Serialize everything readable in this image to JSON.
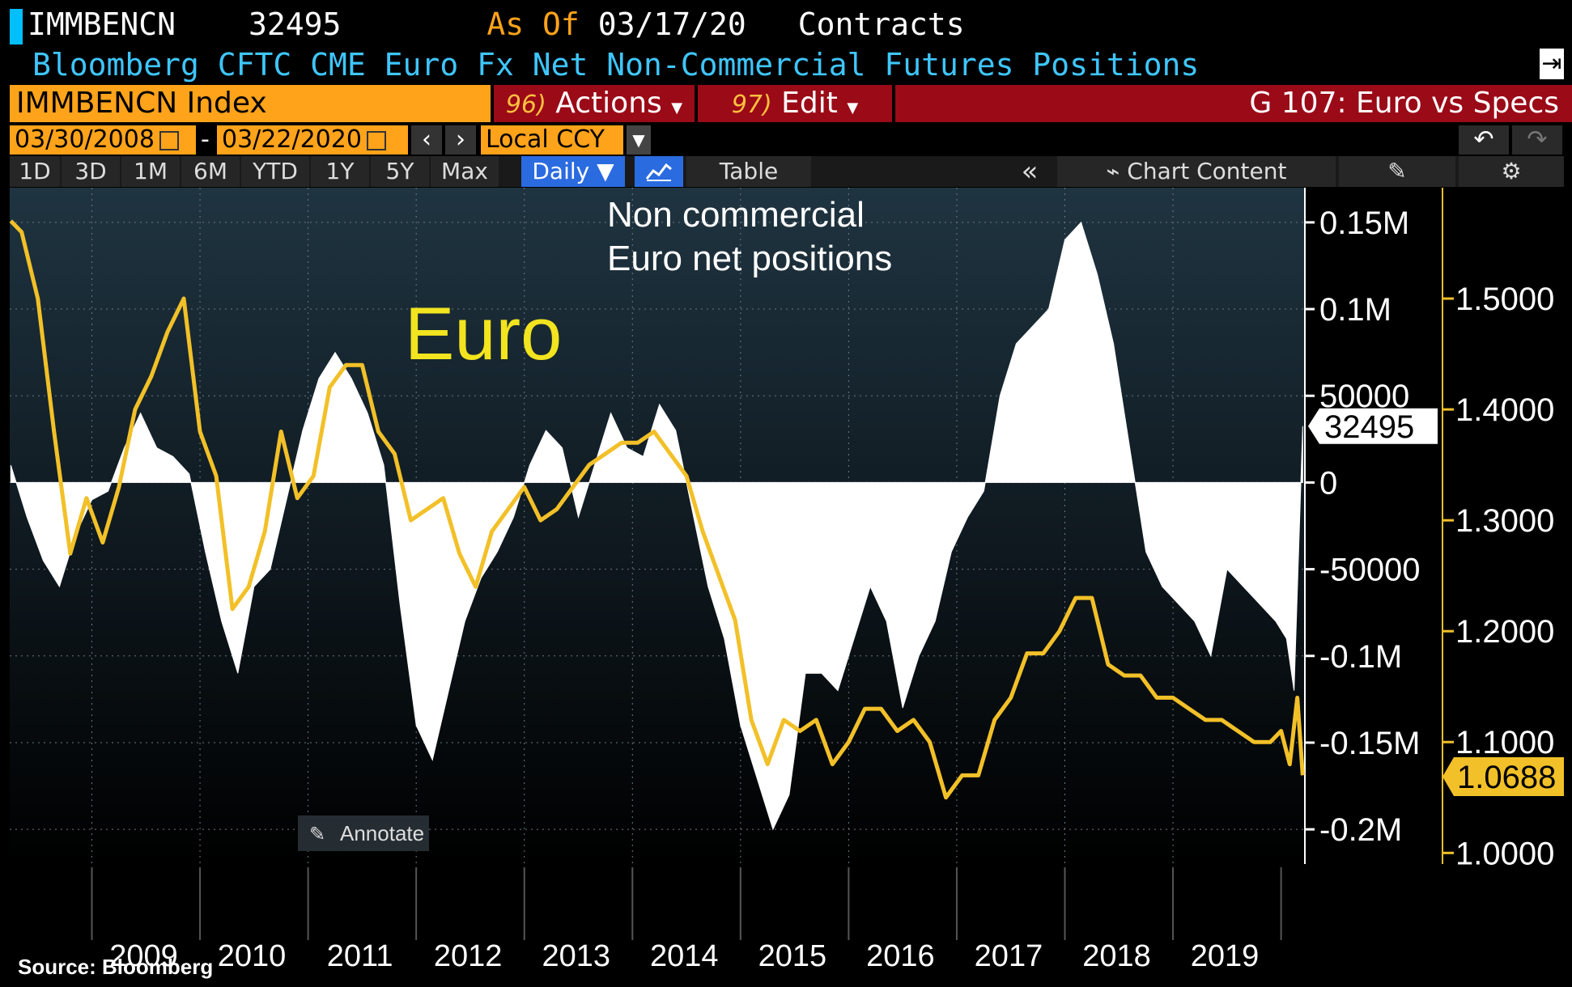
{
  "header": {
    "ticker": "IMMBENCN",
    "value": "32495",
    "as_of_label": "As Of",
    "as_of_date": "03/17/20",
    "units": "Contracts",
    "description": "Bloomberg CFTC CME Euro Fx Net Non-Commercial Futures Positions",
    "export_icon": "export-icon"
  },
  "toolbar": {
    "security": "IMMBENCN Index",
    "actions_num": "96)",
    "actions_label": "Actions",
    "edit_num": "97)",
    "edit_label": "Edit",
    "chart_title": "G 107: Euro vs Specs",
    "start_date": "03/30/2008",
    "date_sep": "-",
    "end_date": "03/22/2020",
    "currency": "Local CCY",
    "prev_icon": "chevron-left-icon",
    "next_icon": "chevron-right-icon"
  },
  "tabs": {
    "d1": "1D",
    "d3": "3D",
    "m1": "1M",
    "m6": "6M",
    "ytd": "YTD",
    "y1": "1Y",
    "y5": "5Y",
    "max": "Max",
    "daily": "Daily ▼",
    "table": "Table",
    "collapse": "«",
    "chart_content": "Chart Content"
  },
  "colors": {
    "background_top": "#1c2c36",
    "background_bottom": "#000000",
    "positions": "#ffffff",
    "euro": "#f2c028",
    "accent": "#ffa31a",
    "header_red": "#9b0a17",
    "title_blue": "#3ec6ff"
  },
  "chart_data": {
    "type": "area",
    "annotations": {
      "euro_label": "Euro",
      "positions_label_1": "Non commercial",
      "positions_label_2": "Euro net positions",
      "annotate_button": "Annotate"
    },
    "x_ticks": [
      "2009",
      "2010",
      "2011",
      "2012",
      "2013",
      "2014",
      "2015",
      "2016",
      "2017",
      "2018",
      "2019"
    ],
    "x_range": [
      "2008-03-30",
      "2020-03-22"
    ],
    "y_left_label_range": [
      -220000,
      170000
    ],
    "y_left_ticks": [
      "0.15M",
      "0.1M",
      "50000",
      "0",
      "-50000",
      "-0.1M",
      "-0.15M",
      "-0.2M"
    ],
    "y_right_range": [
      0.99,
      1.6
    ],
    "y_right_ticks": [
      "1.5000",
      "1.4000",
      "1.3000",
      "1.2000",
      "1.1000",
      "1.0000"
    ],
    "last_positions_label": "32495",
    "last_euro_label": "1.0688",
    "series": [
      {
        "name": "IMMBENCN",
        "kind": "area",
        "color": "#ffffff",
        "x": [
          2008.25,
          2008.4,
          2008.55,
          2008.7,
          2008.85,
          2009.0,
          2009.15,
          2009.3,
          2009.45,
          2009.6,
          2009.75,
          2009.9,
          2010.05,
          2010.2,
          2010.35,
          2010.5,
          2010.65,
          2010.8,
          2010.95,
          2011.1,
          2011.25,
          2011.4,
          2011.55,
          2011.7,
          2011.85,
          2012.0,
          2012.15,
          2012.3,
          2012.45,
          2012.6,
          2012.75,
          2012.9,
          2013.05,
          2013.2,
          2013.35,
          2013.5,
          2013.65,
          2013.8,
          2013.95,
          2014.1,
          2014.25,
          2014.4,
          2014.55,
          2014.7,
          2014.85,
          2015.0,
          2015.15,
          2015.3,
          2015.45,
          2015.6,
          2015.75,
          2015.9,
          2016.05,
          2016.2,
          2016.35,
          2016.5,
          2016.65,
          2016.8,
          2016.95,
          2017.1,
          2017.25,
          2017.4,
          2017.55,
          2017.7,
          2017.85,
          2018.0,
          2018.15,
          2018.3,
          2018.45,
          2018.6,
          2018.75,
          2018.9,
          2019.05,
          2019.2,
          2019.35,
          2019.5,
          2019.65,
          2019.8,
          2019.95,
          2020.05,
          2020.12,
          2020.2
        ],
        "values": [
          10000,
          -20000,
          -45000,
          -60000,
          -30000,
          -10000,
          -5000,
          20000,
          40000,
          20000,
          15000,
          5000,
          -40000,
          -80000,
          -110000,
          -60000,
          -50000,
          -10000,
          30000,
          60000,
          75000,
          60000,
          40000,
          10000,
          -70000,
          -140000,
          -160000,
          -120000,
          -80000,
          -55000,
          -40000,
          -20000,
          10000,
          30000,
          20000,
          -20000,
          10000,
          40000,
          20000,
          15000,
          45000,
          30000,
          -15000,
          -60000,
          -90000,
          -140000,
          -170000,
          -200000,
          -180000,
          -110000,
          -110000,
          -120000,
          -90000,
          -60000,
          -80000,
          -130000,
          -100000,
          -80000,
          -40000,
          -20000,
          -5000,
          50000,
          80000,
          90000,
          100000,
          140000,
          150000,
          120000,
          80000,
          20000,
          -40000,
          -60000,
          -70000,
          -80000,
          -100000,
          -50000,
          -60000,
          -70000,
          -80000,
          -90000,
          -120000,
          32495
        ]
      },
      {
        "name": "Euro",
        "kind": "line",
        "color": "#f2c028",
        "x": [
          2008.25,
          2008.35,
          2008.5,
          2008.65,
          2008.8,
          2008.95,
          2009.1,
          2009.25,
          2009.4,
          2009.55,
          2009.7,
          2009.85,
          2010.0,
          2010.15,
          2010.3,
          2010.45,
          2010.6,
          2010.75,
          2010.9,
          2011.05,
          2011.2,
          2011.35,
          2011.5,
          2011.65,
          2011.8,
          2011.95,
          2012.1,
          2012.25,
          2012.4,
          2012.55,
          2012.7,
          2012.85,
          2013.0,
          2013.15,
          2013.3,
          2013.45,
          2013.6,
          2013.75,
          2013.9,
          2014.05,
          2014.2,
          2014.35,
          2014.5,
          2014.65,
          2014.8,
          2014.95,
          2015.1,
          2015.25,
          2015.4,
          2015.55,
          2015.7,
          2015.85,
          2016.0,
          2016.15,
          2016.3,
          2016.45,
          2016.6,
          2016.75,
          2016.9,
          2017.05,
          2017.2,
          2017.35,
          2017.5,
          2017.65,
          2017.8,
          2017.95,
          2018.1,
          2018.25,
          2018.4,
          2018.55,
          2018.7,
          2018.85,
          2019.0,
          2019.15,
          2019.3,
          2019.45,
          2019.6,
          2019.75,
          2019.9,
          2020.0,
          2020.08,
          2020.15,
          2020.2
        ],
        "values": [
          1.57,
          1.56,
          1.5,
          1.38,
          1.27,
          1.32,
          1.28,
          1.33,
          1.4,
          1.43,
          1.47,
          1.5,
          1.38,
          1.34,
          1.22,
          1.24,
          1.29,
          1.38,
          1.32,
          1.34,
          1.42,
          1.44,
          1.44,
          1.38,
          1.36,
          1.3,
          1.31,
          1.32,
          1.27,
          1.24,
          1.29,
          1.31,
          1.33,
          1.3,
          1.31,
          1.33,
          1.35,
          1.36,
          1.37,
          1.37,
          1.38,
          1.36,
          1.34,
          1.29,
          1.25,
          1.21,
          1.12,
          1.08,
          1.12,
          1.11,
          1.12,
          1.08,
          1.1,
          1.13,
          1.13,
          1.11,
          1.12,
          1.1,
          1.05,
          1.07,
          1.07,
          1.12,
          1.14,
          1.18,
          1.18,
          1.2,
          1.23,
          1.23,
          1.17,
          1.16,
          1.16,
          1.14,
          1.14,
          1.13,
          1.12,
          1.12,
          1.11,
          1.1,
          1.1,
          1.11,
          1.08,
          1.14,
          1.07
        ]
      }
    ]
  }
}
